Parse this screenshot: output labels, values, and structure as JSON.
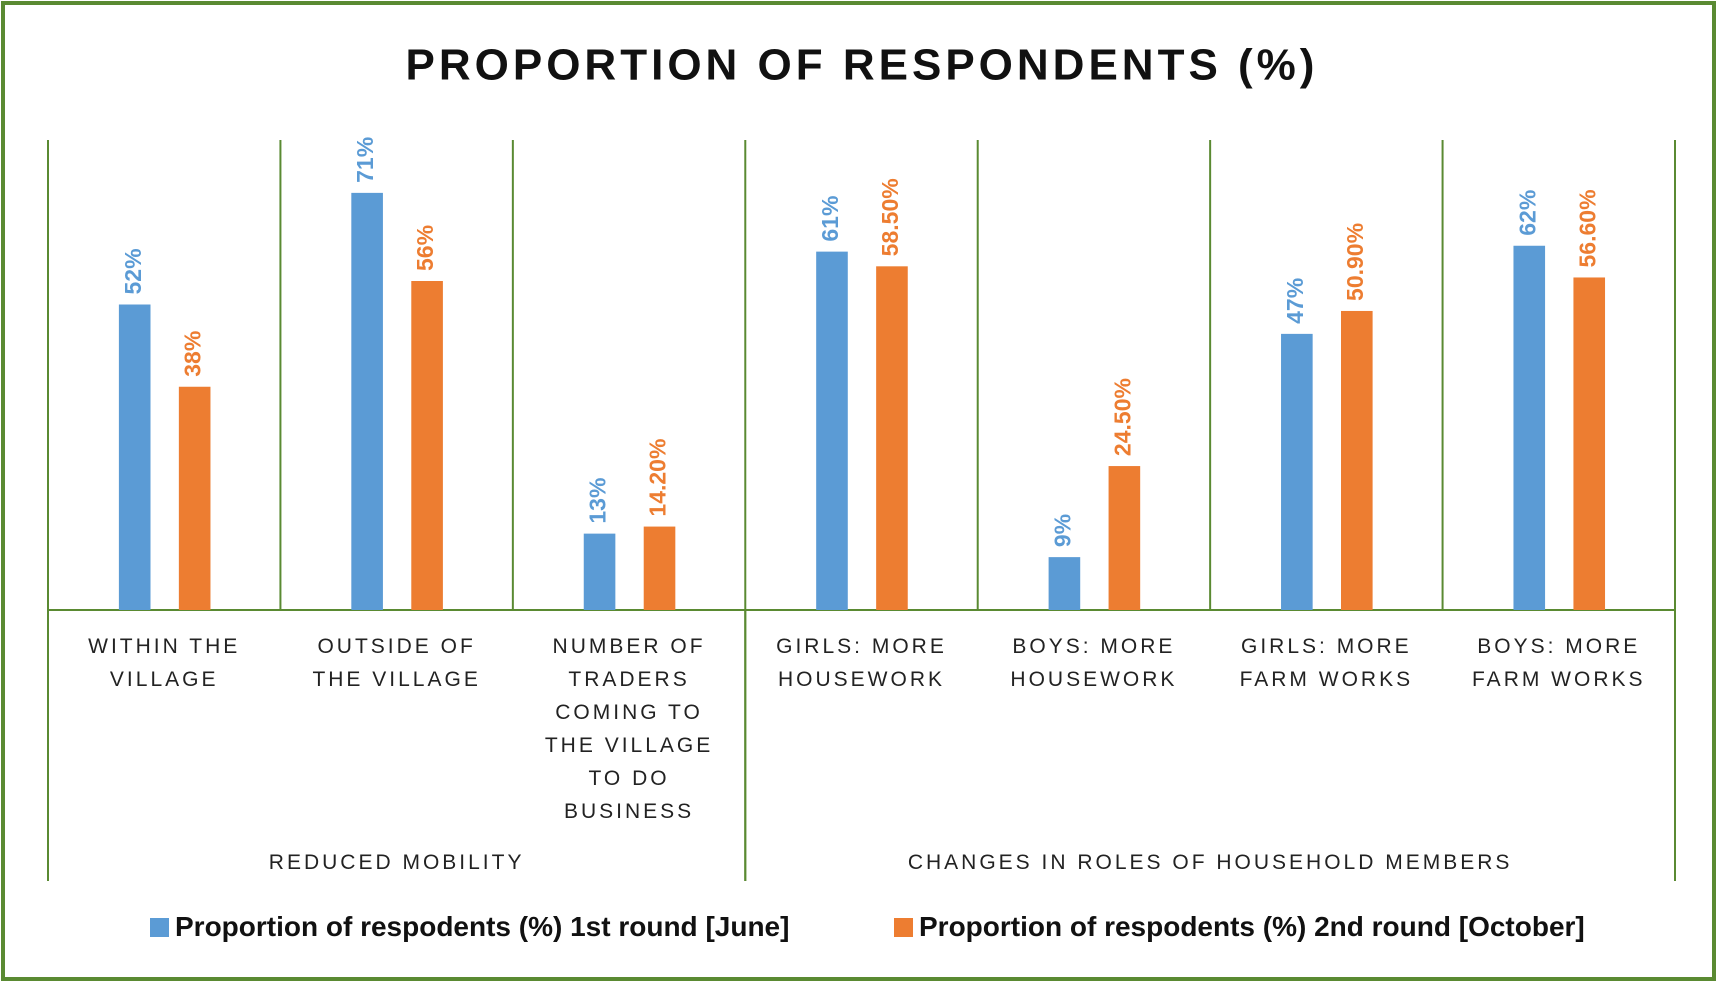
{
  "chart_data": {
    "type": "bar",
    "title": "PROPORTION OF RESPONDENTS (%)",
    "groups": [
      {
        "name": "REDUCED MOBILITY",
        "categories": [
          "WITHIN THE VILLAGE",
          "OUTSIDE OF THE VILLAGE",
          "NUMBER OF TRADERS COMING TO THE VILLAGE TO DO BUSINESS"
        ]
      },
      {
        "name": "CHANGES IN ROLES OF HOUSEHOLD MEMBERS",
        "categories": [
          "GIRLS: MORE HOUSEWORK",
          "BOYS: MORE HOUSEWORK",
          "GIRLS: MORE FARM WORKS",
          "BOYS: MORE FARM WORKS"
        ]
      }
    ],
    "series": [
      {
        "name": "Proportion of respodents (%) 1st round [June]",
        "color": "#5b9bd5",
        "values": [
          52,
          71,
          13,
          61,
          9,
          47,
          62
        ],
        "value_labels": [
          "52%",
          "71%",
          "13%",
          "61%",
          "9%",
          "47%",
          "62%"
        ]
      },
      {
        "name": "Proportion of respodents (%) 2nd round [October]",
        "color": "#ed7d31",
        "values": [
          38,
          56,
          14.2,
          58.5,
          24.5,
          50.9,
          56.6
        ],
        "value_labels": [
          "38%",
          "56%",
          "14.20%",
          "58.50%",
          "24.50%",
          "50.90%",
          "56.60%"
        ]
      }
    ],
    "ylim": [
      0,
      80
    ],
    "legend": "bottom"
  }
}
